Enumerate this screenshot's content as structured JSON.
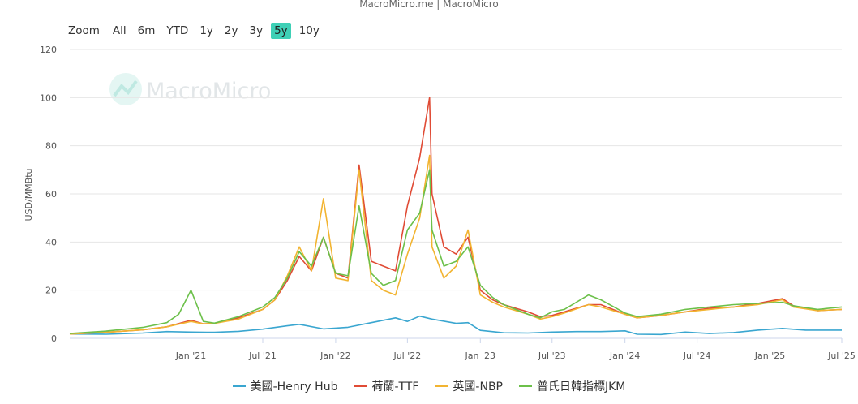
{
  "credit": "MacroMicro.me | MacroMicro",
  "watermark": "MacroMicro",
  "zoom": {
    "label": "Zoom",
    "options": [
      "All",
      "6m",
      "YTD",
      "1y",
      "2y",
      "3y",
      "5y",
      "10y"
    ],
    "active": "5y",
    "active_color": "#3fd0b6"
  },
  "chart_data": {
    "type": "line",
    "ylabel": "USD/MMBtu",
    "ylim": [
      0,
      120
    ],
    "yticks": [
      0,
      20,
      40,
      60,
      80,
      100,
      120
    ],
    "x_range": [
      "2020-03",
      "2025-07"
    ],
    "xticks": [
      {
        "label": "Jan '21",
        "date": "2021-01"
      },
      {
        "label": "Jul '21",
        "date": "2021-07"
      },
      {
        "label": "Jan '22",
        "date": "2022-01"
      },
      {
        "label": "Jul '22",
        "date": "2022-07"
      },
      {
        "label": "Jan '23",
        "date": "2023-01"
      },
      {
        "label": "Jul '23",
        "date": "2023-07"
      },
      {
        "label": "Jan '24",
        "date": "2024-01"
      },
      {
        "label": "Jul '24",
        "date": "2024-07"
      },
      {
        "label": "Jan '25",
        "date": "2025-01"
      },
      {
        "label": "Jul '25",
        "date": "2025-07"
      }
    ],
    "grid": true,
    "legend_position": "bottom",
    "series": [
      {
        "name": "美國-Henry Hub",
        "color": "#3aa6d0",
        "points": [
          [
            "2020-03",
            1.8
          ],
          [
            "2020-06",
            1.7
          ],
          [
            "2020-09",
            2.2
          ],
          [
            "2020-11",
            2.8
          ],
          [
            "2021-01",
            2.6
          ],
          [
            "2021-03",
            2.5
          ],
          [
            "2021-05",
            2.9
          ],
          [
            "2021-07",
            3.8
          ],
          [
            "2021-09",
            5.2
          ],
          [
            "2021-10",
            5.8
          ],
          [
            "2021-12",
            3.9
          ],
          [
            "2022-02",
            4.6
          ],
          [
            "2022-04",
            6.5
          ],
          [
            "2022-06",
            8.5
          ],
          [
            "2022-07",
            7.0
          ],
          [
            "2022-08",
            9.2
          ],
          [
            "2022-09",
            8.0
          ],
          [
            "2022-11",
            6.2
          ],
          [
            "2022-12",
            6.5
          ],
          [
            "2023-01",
            3.3
          ],
          [
            "2023-03",
            2.3
          ],
          [
            "2023-05",
            2.2
          ],
          [
            "2023-07",
            2.6
          ],
          [
            "2023-09",
            2.8
          ],
          [
            "2023-11",
            2.8
          ],
          [
            "2024-01",
            3.1
          ],
          [
            "2024-02",
            1.7
          ],
          [
            "2024-04",
            1.6
          ],
          [
            "2024-06",
            2.6
          ],
          [
            "2024-08",
            2.0
          ],
          [
            "2024-10",
            2.4
          ],
          [
            "2024-12",
            3.4
          ],
          [
            "2025-02",
            4.1
          ],
          [
            "2025-04",
            3.4
          ],
          [
            "2025-07",
            3.4
          ]
        ]
      },
      {
        "name": "荷蘭-TTF",
        "color": "#e04b35",
        "points": [
          [
            "2020-03",
            1.8
          ],
          [
            "2020-06",
            2.5
          ],
          [
            "2020-09",
            3.5
          ],
          [
            "2020-11",
            4.8
          ],
          [
            "2021-01",
            7.5
          ],
          [
            "2021-02",
            6.0
          ],
          [
            "2021-03",
            6.2
          ],
          [
            "2021-05",
            8.5
          ],
          [
            "2021-07",
            12.0
          ],
          [
            "2021-08",
            16.0
          ],
          [
            "2021-09",
            24.0
          ],
          [
            "2021-10",
            34.0
          ],
          [
            "2021-11",
            28.0
          ],
          [
            "2021-12",
            42.0
          ],
          [
            "2022-01",
            27.0
          ],
          [
            "2022-02",
            25.0
          ],
          [
            "2022-03",
            72.0
          ],
          [
            "2022-04",
            32.0
          ],
          [
            "2022-05",
            30.0
          ],
          [
            "2022-06",
            28.0
          ],
          [
            "2022-07",
            55.0
          ],
          [
            "2022-08",
            75.0
          ],
          [
            "2022-08-26",
            100.0
          ],
          [
            "2022-09",
            60.0
          ],
          [
            "2022-10",
            38.0
          ],
          [
            "2022-11",
            35.0
          ],
          [
            "2022-12",
            42.0
          ],
          [
            "2023-01",
            20.0
          ],
          [
            "2023-02",
            16.0
          ],
          [
            "2023-03",
            14.0
          ],
          [
            "2023-05",
            11.0
          ],
          [
            "2023-06",
            9.0
          ],
          [
            "2023-07",
            9.5
          ],
          [
            "2023-08",
            11.0
          ],
          [
            "2023-10",
            14.0
          ],
          [
            "2023-11",
            14.0
          ],
          [
            "2024-01",
            10.0
          ],
          [
            "2024-02",
            8.5
          ],
          [
            "2024-04",
            9.5
          ],
          [
            "2024-06",
            11.0
          ],
          [
            "2024-08",
            12.5
          ],
          [
            "2024-10",
            13.0
          ],
          [
            "2024-12",
            14.5
          ],
          [
            "2025-02",
            16.5
          ],
          [
            "2025-03",
            13.5
          ],
          [
            "2025-05",
            11.5
          ],
          [
            "2025-07",
            12.0
          ]
        ]
      },
      {
        "name": "英國-NBP",
        "color": "#f2b431",
        "points": [
          [
            "2020-03",
            1.8
          ],
          [
            "2020-06",
            2.5
          ],
          [
            "2020-09",
            3.5
          ],
          [
            "2020-11",
            4.8
          ],
          [
            "2021-01",
            7.0
          ],
          [
            "2021-02",
            6.0
          ],
          [
            "2021-03",
            6.2
          ],
          [
            "2021-05",
            8.0
          ],
          [
            "2021-07",
            12.0
          ],
          [
            "2021-08",
            16.0
          ],
          [
            "2021-09",
            26.0
          ],
          [
            "2021-10",
            38.0
          ],
          [
            "2021-11",
            28.0
          ],
          [
            "2021-12",
            58.0
          ],
          [
            "2022-01",
            25.0
          ],
          [
            "2022-02",
            24.0
          ],
          [
            "2022-03",
            70.0
          ],
          [
            "2022-04",
            24.0
          ],
          [
            "2022-05",
            20.0
          ],
          [
            "2022-06",
            18.0
          ],
          [
            "2022-07",
            35.0
          ],
          [
            "2022-08",
            50.0
          ],
          [
            "2022-08-26",
            76.0
          ],
          [
            "2022-09",
            38.0
          ],
          [
            "2022-10",
            25.0
          ],
          [
            "2022-11",
            30.0
          ],
          [
            "2022-12",
            45.0
          ],
          [
            "2023-01",
            18.0
          ],
          [
            "2023-02",
            15.0
          ],
          [
            "2023-03",
            13.0
          ],
          [
            "2023-05",
            10.0
          ],
          [
            "2023-06",
            8.0
          ],
          [
            "2023-07",
            9.0
          ],
          [
            "2023-08",
            10.5
          ],
          [
            "2023-10",
            14.0
          ],
          [
            "2023-11",
            13.0
          ],
          [
            "2024-01",
            10.0
          ],
          [
            "2024-02",
            8.5
          ],
          [
            "2024-04",
            9.5
          ],
          [
            "2024-06",
            11.0
          ],
          [
            "2024-08",
            12.0
          ],
          [
            "2024-10",
            13.0
          ],
          [
            "2024-12",
            14.0
          ],
          [
            "2025-02",
            16.0
          ],
          [
            "2025-03",
            13.0
          ],
          [
            "2025-05",
            11.5
          ],
          [
            "2025-07",
            12.0
          ]
        ]
      },
      {
        "name": "普氏日韓指標JKM",
        "color": "#6cc04a",
        "points": [
          [
            "2020-03",
            2.0
          ],
          [
            "2020-06",
            3.0
          ],
          [
            "2020-09",
            4.5
          ],
          [
            "2020-11",
            6.5
          ],
          [
            "2020-12",
            10.0
          ],
          [
            "2021-01",
            20.0
          ],
          [
            "2021-02",
            7.0
          ],
          [
            "2021-03",
            6.3
          ],
          [
            "2021-05",
            9.0
          ],
          [
            "2021-07",
            13.0
          ],
          [
            "2021-08",
            17.0
          ],
          [
            "2021-09",
            25.0
          ],
          [
            "2021-10",
            36.0
          ],
          [
            "2021-11",
            30.0
          ],
          [
            "2021-12",
            42.0
          ],
          [
            "2022-01",
            27.0
          ],
          [
            "2022-02",
            26.0
          ],
          [
            "2022-03",
            55.0
          ],
          [
            "2022-04",
            27.0
          ],
          [
            "2022-05",
            22.0
          ],
          [
            "2022-06",
            24.0
          ],
          [
            "2022-07",
            45.0
          ],
          [
            "2022-08",
            52.0
          ],
          [
            "2022-08-26",
            70.0
          ],
          [
            "2022-09",
            45.0
          ],
          [
            "2022-10",
            30.0
          ],
          [
            "2022-11",
            32.0
          ],
          [
            "2022-12",
            38.0
          ],
          [
            "2023-01",
            22.0
          ],
          [
            "2023-02",
            17.0
          ],
          [
            "2023-03",
            14.0
          ],
          [
            "2023-05",
            10.0
          ],
          [
            "2023-06",
            8.5
          ],
          [
            "2023-07",
            11.0
          ],
          [
            "2023-08",
            12.0
          ],
          [
            "2023-10",
            18.0
          ],
          [
            "2023-11",
            16.0
          ],
          [
            "2024-01",
            10.5
          ],
          [
            "2024-02",
            9.0
          ],
          [
            "2024-04",
            10.0
          ],
          [
            "2024-06",
            12.0
          ],
          [
            "2024-08",
            13.0
          ],
          [
            "2024-10",
            14.0
          ],
          [
            "2024-12",
            14.5
          ],
          [
            "2025-02",
            15.0
          ],
          [
            "2025-03",
            13.5
          ],
          [
            "2025-05",
            12.0
          ],
          [
            "2025-07",
            13.0
          ]
        ]
      }
    ]
  }
}
